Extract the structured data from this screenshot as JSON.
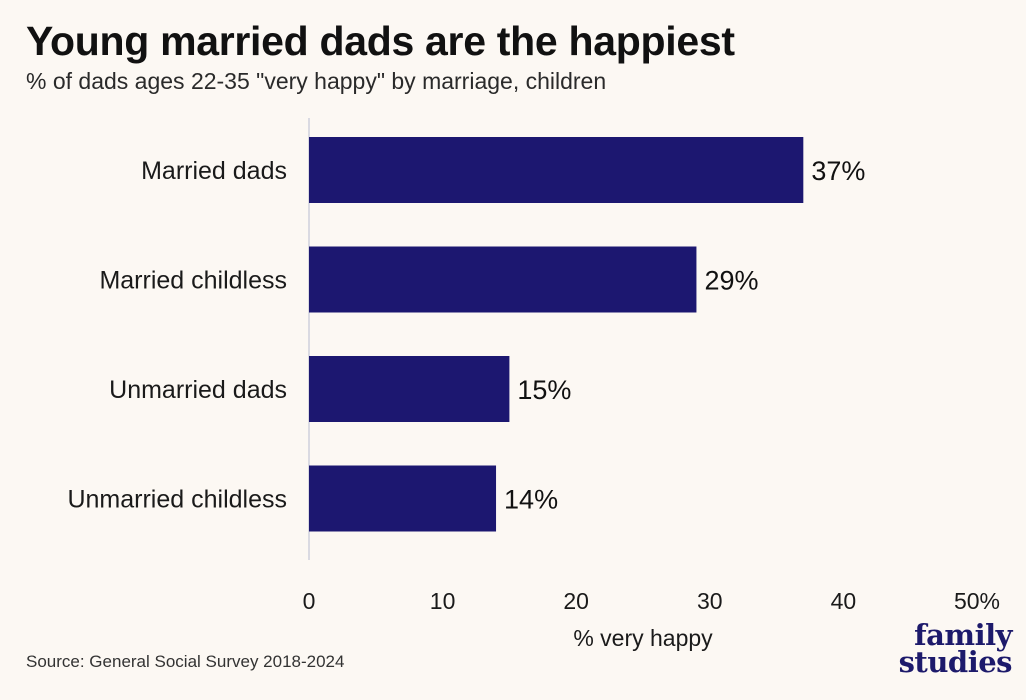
{
  "header": {
    "title": "Young married dads are the happiest",
    "subtitle": "% of dads ages 22-35 \"very happy\" by marriage, children"
  },
  "footer": {
    "source": "Source: General Social Survey 2018-2024",
    "logo_line1": "family",
    "logo_line2": "studies"
  },
  "colors": {
    "bar": "#1c1770",
    "background": "#fcf8f3",
    "axis": "#cfcfdc"
  },
  "chart_data": {
    "type": "bar",
    "orientation": "horizontal",
    "title": "Young married dads are the happiest",
    "subtitle": "% of dads ages 22-35 \"very happy\" by marriage, children",
    "xlabel": "% very happy",
    "ylabel": "",
    "categories": [
      "Married dads",
      "Married childless",
      "Unmarried dads",
      "Unmarried childless"
    ],
    "values": [
      37,
      29,
      15,
      14
    ],
    "data_labels": [
      "37%",
      "29%",
      "15%",
      "14%"
    ],
    "xlim": [
      0,
      50
    ],
    "xticks": [
      0,
      10,
      20,
      30,
      40,
      50
    ],
    "xtick_labels": [
      "0",
      "10",
      "20",
      "30",
      "40",
      "50%"
    ],
    "grid": false,
    "legend": "none"
  }
}
